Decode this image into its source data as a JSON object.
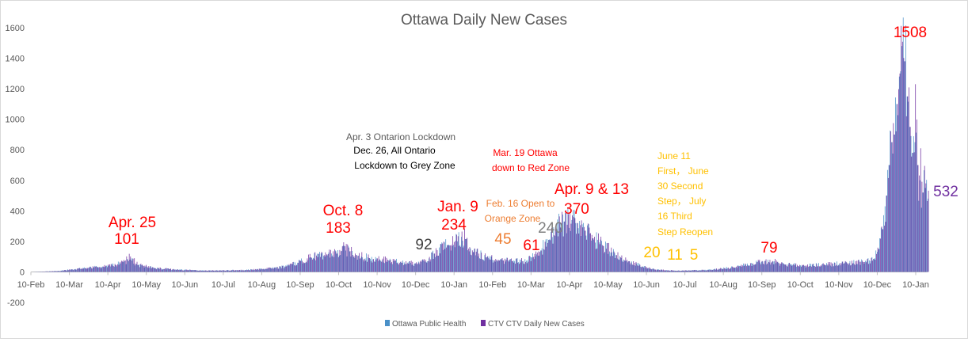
{
  "chart_data": {
    "type": "bar",
    "title": "Ottawa Daily New Cases",
    "xlabel": "",
    "ylabel": "",
    "ylim": [
      -200,
      1600
    ],
    "yticks": [
      -200,
      0,
      200,
      400,
      600,
      800,
      1000,
      1200,
      1400,
      1600
    ],
    "x_tick_labels": [
      "10-Feb",
      "10-Mar",
      "10-Apr",
      "10-May",
      "10-Jun",
      "10-Jul",
      "10-Aug",
      "10-Sep",
      "10-Oct",
      "10-Nov",
      "10-Dec",
      "10-Jan",
      "10-Feb",
      "10-Mar",
      "10-Apr",
      "10-May",
      "10-Jun",
      "10-Jul",
      "10-Aug",
      "10-Sep",
      "10-Oct",
      "10-Nov",
      "10-Dec",
      "10-Jan"
    ],
    "grid": false,
    "legend_position": "bottom",
    "colors": {
      "ottawa_public_health": "#4a90c8",
      "ctv_daily": "#7030a0",
      "axis": "#bfbfbf",
      "tick_text": "#595959"
    },
    "series": [
      {
        "name": "Ottawa Public Health",
        "color": "#4a90c8",
        "anchors": [
          [
            0,
            0
          ],
          [
            20,
            5
          ],
          [
            30,
            15
          ],
          [
            42,
            25
          ],
          [
            55,
            35
          ],
          [
            65,
            45
          ],
          [
            72,
            70
          ],
          [
            76,
            80
          ],
          [
            82,
            45
          ],
          [
            95,
            25
          ],
          [
            110,
            15
          ],
          [
            130,
            10
          ],
          [
            150,
            10
          ],
          [
            165,
            12
          ],
          [
            180,
            20
          ],
          [
            195,
            35
          ],
          [
            205,
            60
          ],
          [
            215,
            95
          ],
          [
            225,
            105
          ],
          [
            235,
            120
          ],
          [
            242,
            140
          ],
          [
            250,
            110
          ],
          [
            260,
            90
          ],
          [
            275,
            75
          ],
          [
            285,
            60
          ],
          [
            295,
            55
          ],
          [
            305,
            70
          ],
          [
            310,
            120
          ],
          [
            320,
            175
          ],
          [
            328,
            200
          ],
          [
            334,
            215
          ],
          [
            340,
            130
          ],
          [
            350,
            95
          ],
          [
            360,
            75
          ],
          [
            370,
            70
          ],
          [
            378,
            70
          ],
          [
            385,
            95
          ],
          [
            392,
            140
          ],
          [
            398,
            210
          ],
          [
            404,
            280
          ],
          [
            410,
            330
          ],
          [
            416,
            340
          ],
          [
            420,
            320
          ],
          [
            426,
            270
          ],
          [
            432,
            220
          ],
          [
            440,
            170
          ],
          [
            450,
            110
          ],
          [
            460,
            70
          ],
          [
            470,
            35
          ],
          [
            480,
            15
          ],
          [
            490,
            10
          ],
          [
            500,
            8
          ],
          [
            520,
            12
          ],
          [
            540,
            30
          ],
          [
            555,
            55
          ],
          [
            568,
            62
          ],
          [
            580,
            48
          ],
          [
            595,
            40
          ],
          [
            610,
            48
          ],
          [
            625,
            55
          ],
          [
            640,
            65
          ],
          [
            648,
            85
          ],
          [
            652,
            150
          ],
          [
            655,
            280
          ],
          [
            658,
            500
          ],
          [
            660,
            700
          ],
          [
            662,
            850
          ],
          [
            664,
            900
          ],
          [
            666,
            1100
          ],
          [
            668,
            1280
          ],
          [
            670,
            1480
          ],
          [
            672,
            1380
          ],
          [
            674,
            1150
          ],
          [
            676,
            950
          ],
          [
            678,
            780
          ],
          [
            680,
            850
          ],
          [
            682,
            700
          ],
          [
            684,
            600
          ],
          [
            686,
            520
          ],
          [
            688,
            550
          ],
          [
            690,
            480
          ]
        ],
        "noise": 0.3
      },
      {
        "name": "CTV CTV Daily New Cases",
        "color": "#7030a0",
        "anchors": [
          [
            0,
            0
          ],
          [
            20,
            5
          ],
          [
            30,
            15
          ],
          [
            42,
            25
          ],
          [
            55,
            35
          ],
          [
            65,
            45
          ],
          [
            72,
            75
          ],
          [
            76,
            101
          ],
          [
            82,
            45
          ],
          [
            95,
            25
          ],
          [
            110,
            15
          ],
          [
            130,
            10
          ],
          [
            150,
            10
          ],
          [
            165,
            12
          ],
          [
            180,
            20
          ],
          [
            195,
            35
          ],
          [
            205,
            60
          ],
          [
            215,
            95
          ],
          [
            225,
            110
          ],
          [
            235,
            120
          ],
          [
            242,
            183
          ],
          [
            250,
            110
          ],
          [
            260,
            90
          ],
          [
            275,
            75
          ],
          [
            285,
            60
          ],
          [
            295,
            55
          ],
          [
            305,
            70
          ],
          [
            310,
            120
          ],
          [
            320,
            175
          ],
          [
            328,
            234
          ],
          [
            334,
            215
          ],
          [
            340,
            130
          ],
          [
            350,
            95
          ],
          [
            360,
            75
          ],
          [
            370,
            70
          ],
          [
            378,
            70
          ],
          [
            385,
            95
          ],
          [
            392,
            140
          ],
          [
            398,
            210
          ],
          [
            404,
            280
          ],
          [
            410,
            330
          ],
          [
            416,
            370
          ],
          [
            420,
            320
          ],
          [
            426,
            270
          ],
          [
            432,
            220
          ],
          [
            440,
            170
          ],
          [
            450,
            110
          ],
          [
            460,
            70
          ],
          [
            470,
            35
          ],
          [
            480,
            15
          ],
          [
            490,
            10
          ],
          [
            500,
            8
          ],
          [
            520,
            12
          ],
          [
            540,
            30
          ],
          [
            555,
            55
          ],
          [
            568,
            79
          ],
          [
            580,
            48
          ],
          [
            595,
            40
          ],
          [
            610,
            48
          ],
          [
            625,
            55
          ],
          [
            640,
            65
          ],
          [
            648,
            85
          ],
          [
            652,
            150
          ],
          [
            655,
            280
          ],
          [
            658,
            500
          ],
          [
            660,
            700
          ],
          [
            662,
            850
          ],
          [
            664,
            900
          ],
          [
            666,
            1100
          ],
          [
            668,
            1300
          ],
          [
            670,
            1508
          ],
          [
            672,
            1380
          ],
          [
            674,
            1150
          ],
          [
            676,
            950
          ],
          [
            678,
            780
          ],
          [
            680,
            1230
          ],
          [
            682,
            700
          ],
          [
            684,
            810
          ],
          [
            686,
            520
          ],
          [
            688,
            580
          ],
          [
            690,
            532
          ]
        ],
        "noise": 0.3
      }
    ],
    "x_span_days": 690,
    "annotations": [
      {
        "text": "Ottawa Daily New Cases",
        "color": "#595959",
        "role": "title"
      },
      {
        "text": "Apr. 25",
        "color": "#ff0000"
      },
      {
        "text": "101",
        "color": "#ff0000"
      },
      {
        "text": "Oct. 8",
        "color": "#ff0000"
      },
      {
        "text": "183",
        "color": "#ff0000"
      },
      {
        "text": "Apr. 3 Ontarion Lockdown",
        "color": "#595959"
      },
      {
        "text": "Dec. 26, All Ontario",
        "color": "#000000"
      },
      {
        "text": "Lockdown to Grey Zone",
        "color": "#000000"
      },
      {
        "text": "92",
        "color": "#404040"
      },
      {
        "text": "Jan. 9",
        "color": "#ff0000"
      },
      {
        "text": "234",
        "color": "#ff0000"
      },
      {
        "text": "Mar. 19 Ottawa",
        "color": "#ff0000"
      },
      {
        "text": "down to Red Zone",
        "color": "#ff0000"
      },
      {
        "text": "Feb. 16 Open to",
        "color": "#ed7d31"
      },
      {
        "text": "Orange Zone",
        "color": "#ed7d31"
      },
      {
        "text": "45",
        "color": "#ed7d31"
      },
      {
        "text": "61",
        "color": "#ff0000"
      },
      {
        "text": "240",
        "color": "#7f7f7f"
      },
      {
        "text": "Apr. 9 & 13",
        "color": "#ff0000"
      },
      {
        "text": "370",
        "color": "#ff0000"
      },
      {
        "text": "June 11",
        "color": "#ffc000"
      },
      {
        "text": "First， June",
        "color": "#ffc000"
      },
      {
        "text": "30 Second",
        "color": "#ffc000"
      },
      {
        "text": "Step， July",
        "color": "#ffc000"
      },
      {
        "text": "16 Third",
        "color": "#ffc000"
      },
      {
        "text": "Step Reopen",
        "color": "#ffc000"
      },
      {
        "text": "20",
        "color": "#ffc000"
      },
      {
        "text": "11",
        "color": "#ffc000"
      },
      {
        "text": "5",
        "color": "#ffc000"
      },
      {
        "text": "79",
        "color": "#ff0000"
      },
      {
        "text": "1508",
        "color": "#ff0000"
      },
      {
        "text": "532",
        "color": "#7030a0"
      }
    ]
  }
}
